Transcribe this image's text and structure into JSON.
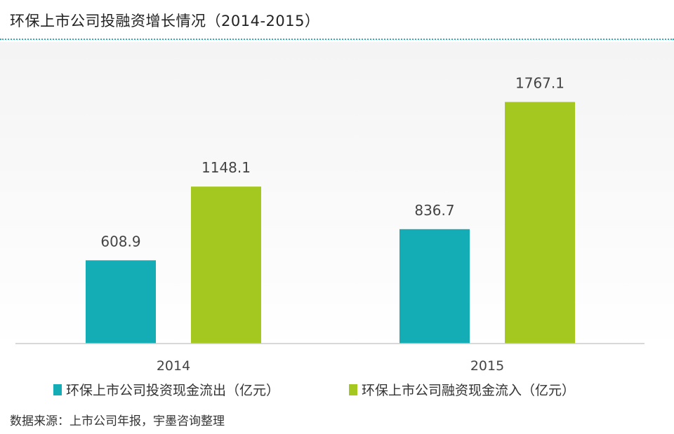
{
  "header": {
    "title": "环保上市公司投融资增长情况（2014-2015）"
  },
  "footer": {
    "source": "数据来源：上市公司年报，宇墨咨询整理"
  },
  "colors": {
    "series1": "#14adb5",
    "series2": "#a5c820",
    "divider": "#26b0c0",
    "baseline": "#cccccc",
    "label": "#444444"
  },
  "chart_data": {
    "type": "bar",
    "title": "环保上市公司投融资增长情况（2014-2015）",
    "categories": [
      "2014",
      "2015"
    ],
    "series": [
      {
        "name": "环保上市公司投资现金流出（亿元）",
        "values": [
          608.9,
          836.7
        ]
      },
      {
        "name": "环保上市公司融资现金流入（亿元）",
        "values": [
          1148.1,
          1767.1
        ]
      }
    ],
    "data_labels": [
      [
        "608.9",
        "836.7"
      ],
      [
        "1148.1",
        "1767.1"
      ]
    ],
    "ylim": [
      0,
      2000
    ],
    "grid": false,
    "legend": "bottom"
  }
}
